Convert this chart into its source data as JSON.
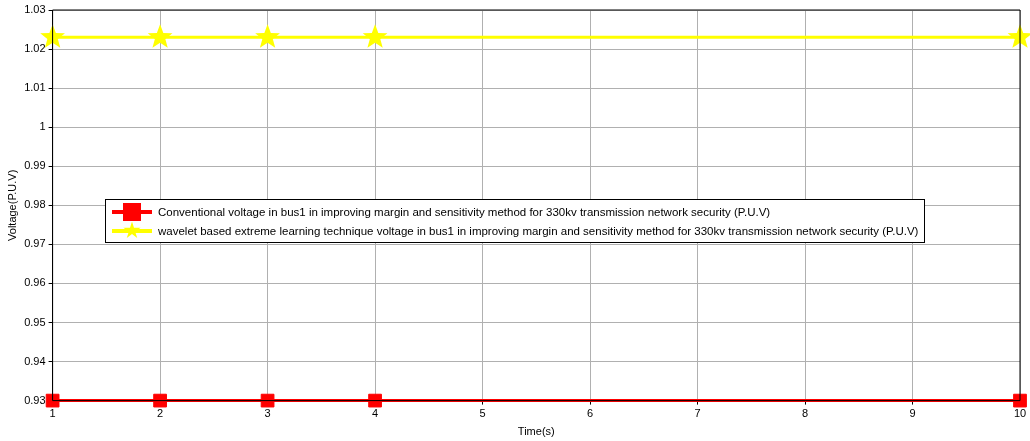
{
  "chart_data": {
    "type": "line",
    "xlabel": "Time(s)",
    "ylabel": "Voltage(P.U.V)",
    "x": [
      1,
      2,
      3,
      4,
      10
    ],
    "series": [
      {
        "name": "Conventional voltage in bus1 in improving margin and sensitivity method for 330kv transmission network security (P.U.V)",
        "color": "#ff0000",
        "marker": "square",
        "values": [
          0.93,
          0.93,
          0.93,
          0.93,
          0.93
        ]
      },
      {
        "name": "wavelet based extreme learning technique voltage in bus1 in improving margin and sensitivity method for 330kv transmission network security (P.U.V)",
        "color": "#ffff00",
        "marker": "star",
        "values": [
          1.023,
          1.023,
          1.023,
          1.023,
          1.023
        ]
      }
    ],
    "xlim": [
      1,
      10
    ],
    "xticks": [
      1,
      2,
      3,
      4,
      5,
      6,
      7,
      8,
      9,
      10
    ],
    "ylim": [
      0.93,
      1.03
    ],
    "yticks": [
      0.93,
      0.94,
      0.95,
      0.96,
      0.97,
      0.98,
      0.99,
      1,
      1.01,
      1.02,
      1.03
    ],
    "grid": true,
    "legend": "left",
    "line_style": "solid"
  }
}
